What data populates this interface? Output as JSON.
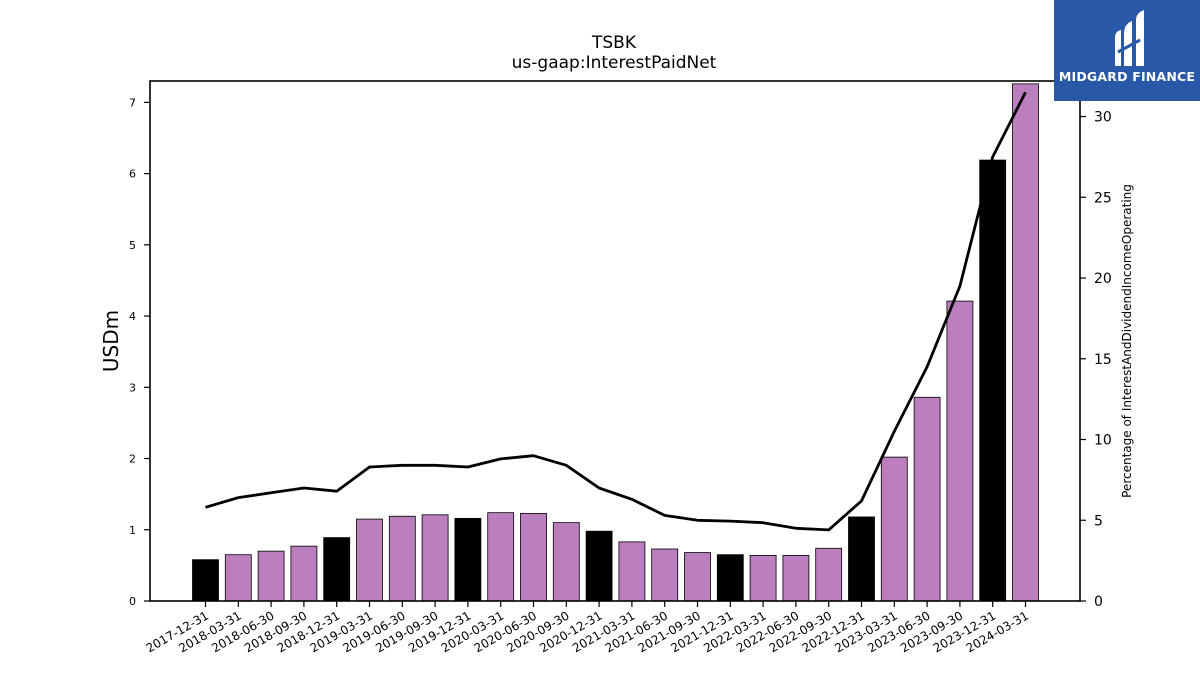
{
  "logo": {
    "text": "MIDGARD FINANCE"
  },
  "chart_data": {
    "type": "bar",
    "title": "TSBK",
    "subtitle": "us-gaap:InterestPaidNet",
    "ylabel": "USDm",
    "y2label": "Percentage of InterestAndDividendIncomeOperating",
    "ylim": [
      0,
      7.3
    ],
    "y2lim": [
      0,
      32.2
    ],
    "yticks": [
      0,
      1,
      2,
      3,
      4,
      5,
      6,
      7
    ],
    "y2ticks": [
      0,
      5,
      10,
      15,
      20,
      25,
      30
    ],
    "categories": [
      "2017-12-31",
      "2018-03-31",
      "2018-06-30",
      "2018-09-30",
      "2018-12-31",
      "2019-03-31",
      "2019-06-30",
      "2019-09-30",
      "2019-12-31",
      "2020-03-31",
      "2020-06-30",
      "2020-09-30",
      "2020-12-31",
      "2021-03-31",
      "2021-06-30",
      "2021-09-30",
      "2021-12-31",
      "2022-03-31",
      "2022-06-30",
      "2022-09-30",
      "2022-12-31",
      "2023-03-31",
      "2023-06-30",
      "2023-09-30",
      "2023-12-31",
      "2024-03-31"
    ],
    "series": [
      {
        "values": [
          0.58,
          0.65,
          0.7,
          0.77,
          0.89,
          1.15,
          1.19,
          1.21,
          1.16,
          1.24,
          1.23,
          1.1,
          0.98,
          0.83,
          0.73,
          0.68,
          0.65,
          0.64,
          0.64,
          0.74,
          1.18,
          2.02,
          2.86,
          4.21,
          6.19,
          7.26
        ],
        "kind": "bar"
      },
      {
        "values": [
          5.8,
          6.4,
          6.7,
          7.0,
          6.8,
          8.3,
          8.4,
          8.4,
          8.3,
          8.8,
          9.0,
          8.4,
          7.0,
          6.3,
          5.3,
          5.0,
          4.95,
          4.85,
          4.5,
          4.4,
          6.2,
          10.5,
          14.5,
          19.5,
          27.5,
          31.5
        ],
        "kind": "line",
        "axis": "right"
      }
    ],
    "colors": {
      "bar_year_end": "#000000",
      "bar_other": "#bb7fbf",
      "line": "#000000",
      "logo_bg": "#2a58a8"
    },
    "grid": false
  }
}
